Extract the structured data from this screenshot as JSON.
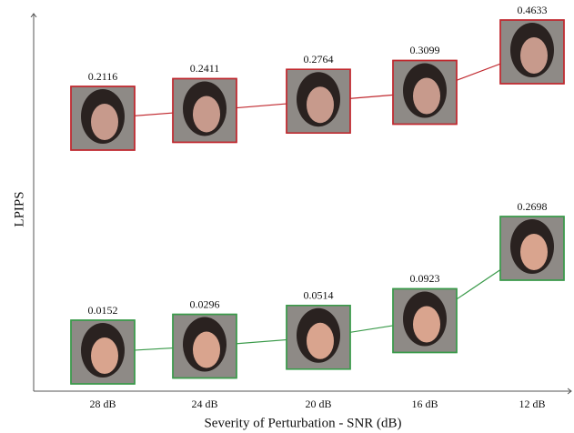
{
  "chart_data": {
    "type": "line",
    "x_label": "Severity of Perturbation - SNR (dB)",
    "y_label": "LPIPS",
    "categories": [
      "28 dB",
      "24 dB",
      "20 dB",
      "16 dB",
      "12 dB"
    ],
    "series": [
      {
        "color": "#c0282e",
        "values": [
          0.2116,
          0.2411,
          0.2764,
          0.3099,
          0.4633
        ]
      },
      {
        "color": "#3a9a4a",
        "values": [
          0.0152,
          0.0296,
          0.0514,
          0.0923,
          0.2698
        ]
      }
    ]
  }
}
